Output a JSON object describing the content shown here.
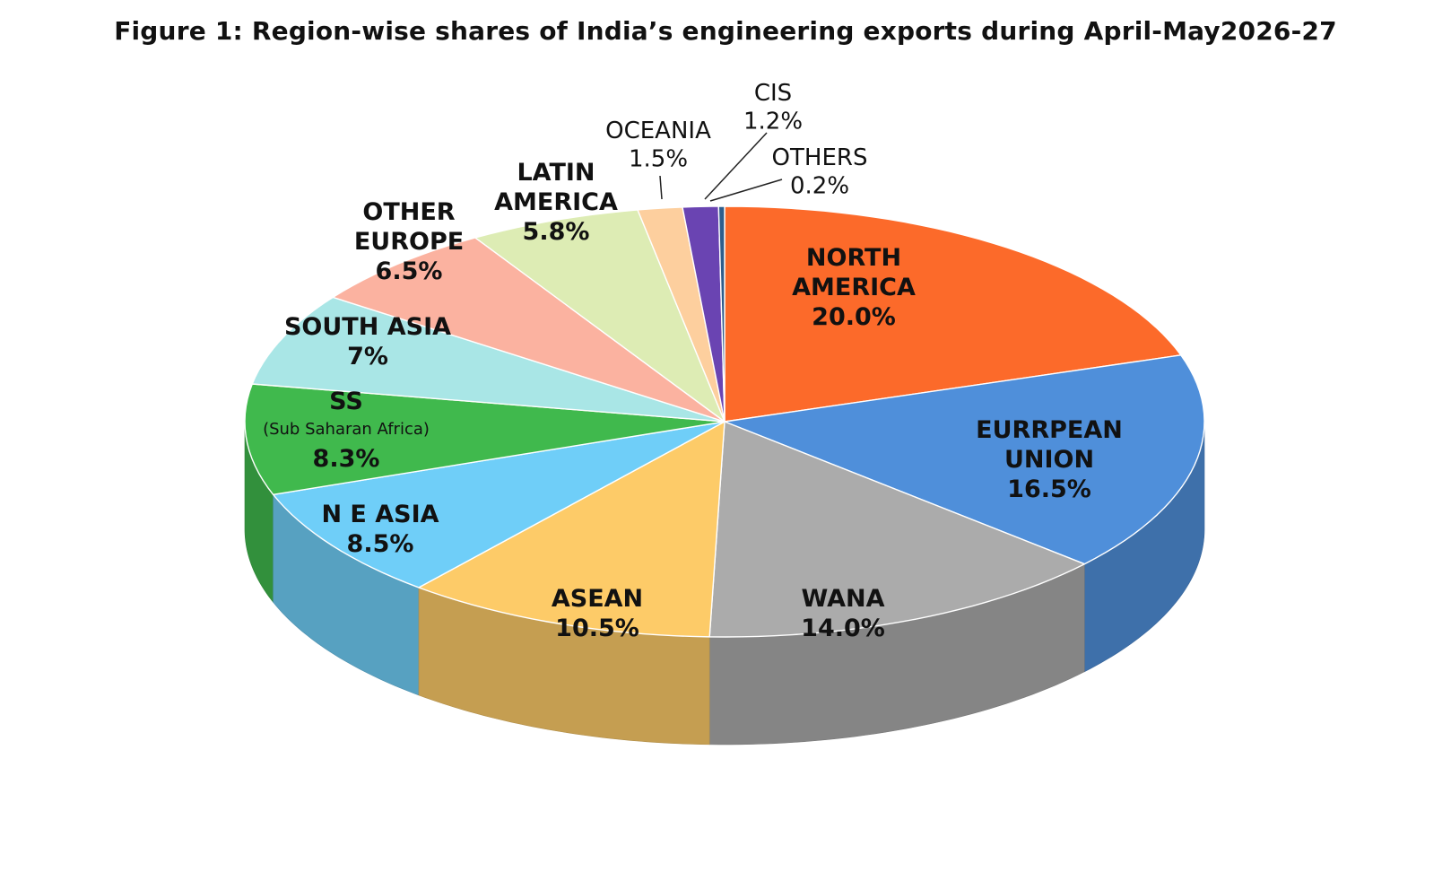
{
  "chart_data": {
    "type": "pie",
    "title": "Figure 1: Region-wise shares of India’s engineering exports during April-May2026-27",
    "unit": "%",
    "slices": [
      {
        "key": "north-america",
        "label_lines": [
          "NORTH",
          "AMERICA"
        ],
        "value": 20.0,
        "value_label": "20.0%",
        "color": "#FC6A2A"
      },
      {
        "key": "european-union",
        "label_lines": [
          "EURRPEAN",
          "UNION"
        ],
        "value": 16.5,
        "value_label": "16.5%",
        "color": "#4F8FDA"
      },
      {
        "key": "wana",
        "label_lines": [
          "WANA"
        ],
        "value": 14.0,
        "value_label": "14.0%",
        "color": "#ABABAB"
      },
      {
        "key": "asean",
        "label_lines": [
          "ASEAN"
        ],
        "value": 10.5,
        "value_label": "10.5%",
        "color": "#FDCB68"
      },
      {
        "key": "ne-asia",
        "label_lines": [
          "N E ASIA"
        ],
        "value": 8.5,
        "value_label": "8.5%",
        "color": "#6FCEF8"
      },
      {
        "key": "ss",
        "label_lines": [
          "SS"
        ],
        "sublabel": "(Sub Saharan Africa)",
        "value": 8.3,
        "value_label": "8.3%",
        "color": "#40B94D"
      },
      {
        "key": "south-asia",
        "label_lines": [
          "SOUTH ASIA"
        ],
        "value": 7.0,
        "value_label": "7%",
        "color": "#A9E6E6"
      },
      {
        "key": "other-europe",
        "label_lines": [
          "OTHER",
          "EUROPE"
        ],
        "value": 6.5,
        "value_label": "6.5%",
        "color": "#FBB2A0"
      },
      {
        "key": "latin-america",
        "label_lines": [
          "LATIN",
          "AMERICA"
        ],
        "value": 5.8,
        "value_label": "5.8%",
        "color": "#DDECB4"
      },
      {
        "key": "oceania",
        "label_lines": [
          "OCEANIA"
        ],
        "value": 1.5,
        "value_label": "1.5%",
        "color": "#FDCF9E"
      },
      {
        "key": "cis",
        "label_lines": [
          "CIS"
        ],
        "value": 1.2,
        "value_label": "1.2%",
        "color": "#6A44B2"
      },
      {
        "key": "others",
        "label_lines": [
          "OTHERS"
        ],
        "value": 0.2,
        "value_label": "0.2%",
        "color": "#2E5E8C"
      }
    ]
  }
}
